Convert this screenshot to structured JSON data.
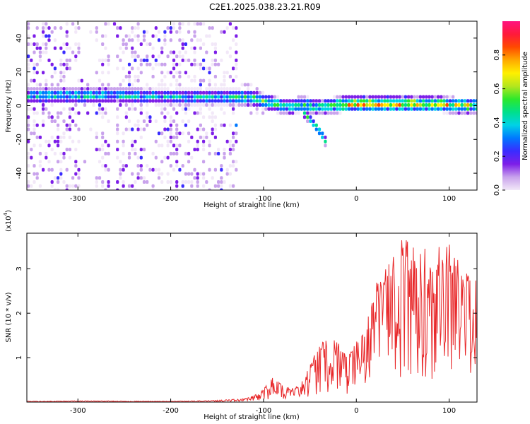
{
  "title": "C2E1.2025.038.23.21.R09",
  "chart_data": [
    {
      "type": "heatmap",
      "xlabel": "Height of straight line (km)",
      "ylabel": "Frequency (Hz)",
      "xlim": [
        -355,
        130
      ],
      "ylim": [
        -50,
        50
      ],
      "xticks": [
        -300,
        -200,
        -100,
        0,
        100
      ],
      "yticks": [
        -40,
        -20,
        0,
        20,
        40
      ],
      "colorbar": {
        "label": "Normalized spectral amplitude",
        "range": [
          0.0,
          1.0
        ],
        "ticks": [
          "0.0",
          "0.2",
          "0.4",
          "0.6",
          "0.8"
        ],
        "colors": [
          "#f2e8f8",
          "#c9a3ec",
          "#7d1ee8",
          "#3a2cff",
          "#0078ff",
          "#00d2e6",
          "#00e08a",
          "#2ce82c",
          "#b4e61e",
          "#fff000",
          "#ffaa00",
          "#ff4a00",
          "#ff1a3a",
          "#ff1480"
        ]
      },
      "ridge": {
        "x": [
          -350,
          -300,
          -250,
          -200,
          -150,
          -130,
          -110,
          -90,
          -75,
          -60,
          -45,
          -30,
          -10,
          0,
          20,
          50,
          80,
          110,
          130
        ],
        "freq": [
          6,
          6,
          6,
          5,
          5,
          5,
          4,
          1,
          -1,
          1,
          -1,
          0,
          1,
          1,
          1,
          1,
          1,
          0,
          0
        ],
        "peak_amplitude": [
          0.5,
          0.55,
          0.5,
          0.45,
          0.45,
          0.55,
          0.65,
          0.6,
          0.5,
          0.6,
          0.55,
          0.6,
          0.9,
          0.9,
          0.85,
          0.85,
          0.8,
          0.75,
          0.7
        ]
      },
      "branch": {
        "x": [
          -60,
          -52,
          -45,
          -40,
          -36,
          -32
        ],
        "freq": [
          -3,
          -8,
          -12,
          -16,
          -20,
          -24
        ]
      },
      "noise_region_end_x": -130
    },
    {
      "type": "line",
      "xlabel": "Height of straight line (km)",
      "ylabel": "SNR (10 * v/v)",
      "y_multiplier": "(x10",
      "y_multiplier_exp": "4",
      "xlim": [
        -355,
        130
      ],
      "ylim": [
        0,
        3.8
      ],
      "xticks": [
        -300,
        -200,
        -100,
        0,
        100
      ],
      "yticks": [
        1,
        2,
        3
      ],
      "color": "#e8282a",
      "envelope": {
        "x": [
          -355,
          -300,
          -200,
          -150,
          -120,
          -110,
          -100,
          -90,
          -80,
          -70,
          -60,
          -50,
          -40,
          -30,
          -20,
          -10,
          0,
          10,
          20,
          30,
          40,
          50,
          60,
          70,
          80,
          90,
          100,
          110,
          120,
          130
        ],
        "y": [
          0.02,
          0.03,
          0.02,
          0.04,
          0.08,
          0.15,
          0.3,
          0.55,
          0.4,
          0.3,
          0.4,
          0.9,
          1.3,
          1.5,
          1.35,
          1.0,
          1.4,
          1.7,
          2.7,
          3.1,
          3.4,
          3.8,
          3.5,
          3.5,
          3.4,
          3.5,
          3.55,
          3.2,
          3.0,
          2.7
        ]
      }
    }
  ]
}
